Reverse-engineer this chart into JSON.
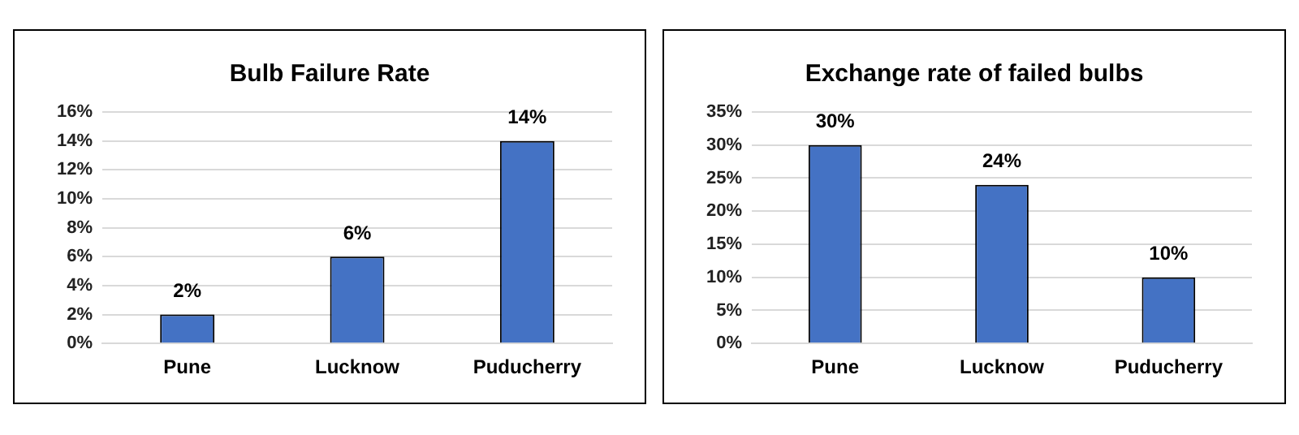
{
  "chart_data": [
    {
      "type": "bar",
      "title": "Bulb Failure Rate",
      "categories": [
        "Pune",
        "Lucknow",
        "Puducherry"
      ],
      "values": [
        2,
        6,
        14
      ],
      "value_labels": [
        "2%",
        "6%",
        "14%"
      ],
      "color": "#4472c4",
      "ylim": [
        0,
        16
      ],
      "yticks": [
        {
          "value": 0,
          "label": "0%"
        },
        {
          "value": 2,
          "label": "2%"
        },
        {
          "value": 4,
          "label": "4%"
        },
        {
          "value": 6,
          "label": "6%"
        },
        {
          "value": 8,
          "label": "8%"
        },
        {
          "value": 10,
          "label": "10%"
        },
        {
          "value": 12,
          "label": "12%"
        },
        {
          "value": 14,
          "label": "14%"
        },
        {
          "value": 16,
          "label": "16%"
        }
      ],
      "grid": "y"
    },
    {
      "type": "bar",
      "title": "Exchange rate of failed bulbs",
      "categories": [
        "Pune",
        "Lucknow",
        "Puducherry"
      ],
      "values": [
        30,
        24,
        10
      ],
      "value_labels": [
        "30%",
        "24%",
        "10%"
      ],
      "color": "#4472c4",
      "ylim": [
        0,
        35
      ],
      "yticks": [
        {
          "value": 0,
          "label": "0%"
        },
        {
          "value": 5,
          "label": "5%"
        },
        {
          "value": 10,
          "label": "10%"
        },
        {
          "value": 15,
          "label": "15%"
        },
        {
          "value": 20,
          "label": "20%"
        },
        {
          "value": 25,
          "label": "25%"
        },
        {
          "value": 30,
          "label": "30%"
        },
        {
          "value": 35,
          "label": "35%"
        }
      ],
      "grid": "y"
    }
  ]
}
